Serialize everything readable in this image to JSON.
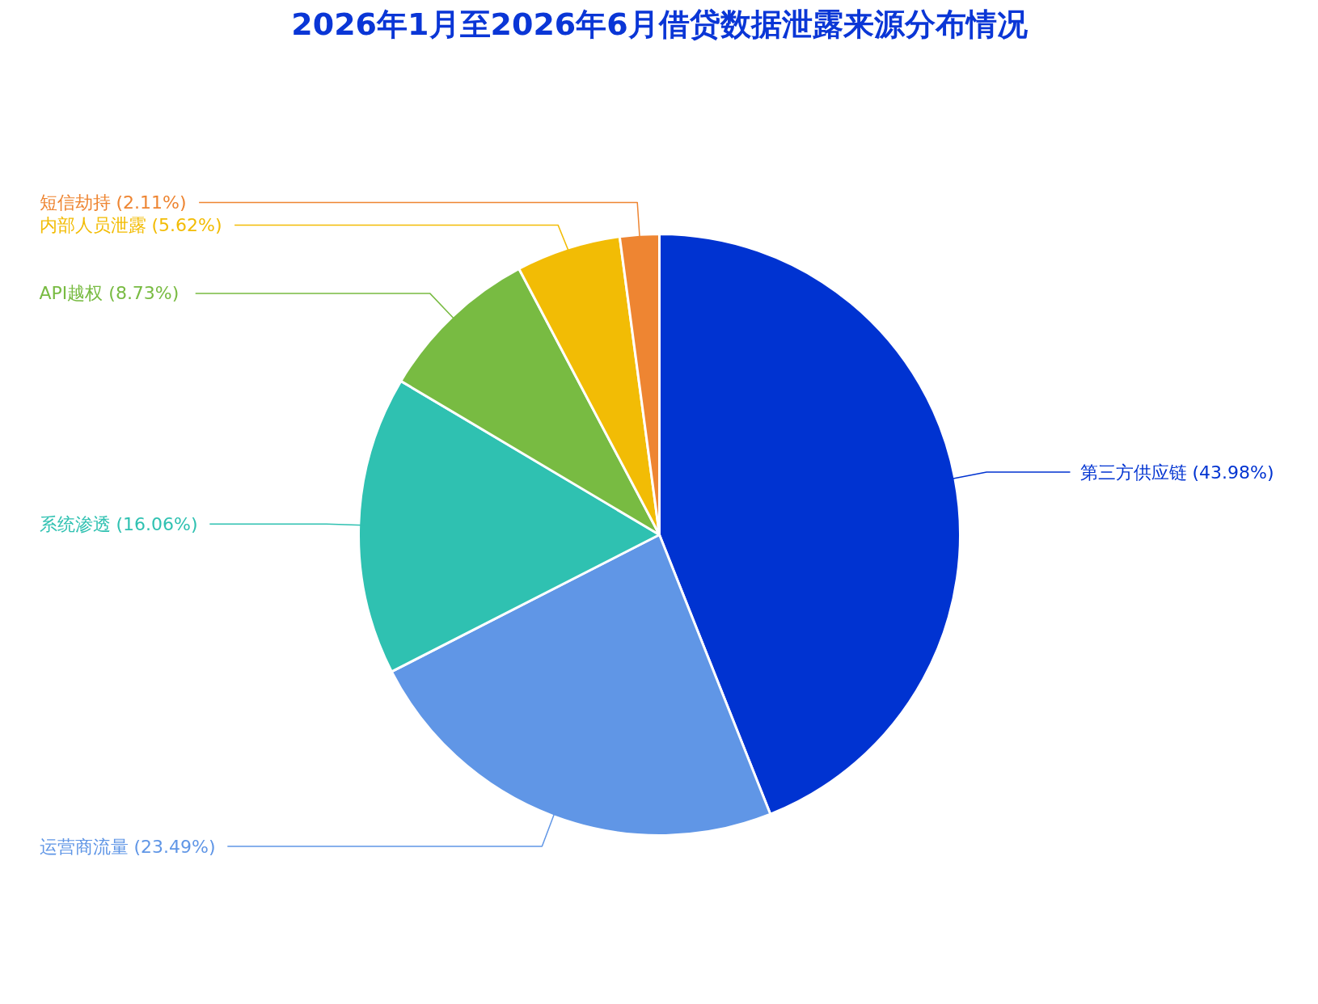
{
  "chart_data": {
    "type": "pie",
    "title": "2026年1月至2026年6月借贷数据泄露来源分布情况",
    "categories": [
      "第三方供应链",
      "运营商流量",
      "系统渗透",
      "API越权",
      "内部人员泄露",
      "短信劫持"
    ],
    "values": [
      43.98,
      23.49,
      16.06,
      8.73,
      5.62,
      2.11
    ],
    "value_labels": [
      "(43.98%)",
      "(23.49%)",
      "(16.06%)",
      "(8.73%)",
      "(5.62%)",
      "(2.11%)"
    ],
    "colors": [
      "#0033d1",
      "#6096e6",
      "#2fc1b1",
      "#78bb42",
      "#f2bc05",
      "#ee8532"
    ]
  }
}
